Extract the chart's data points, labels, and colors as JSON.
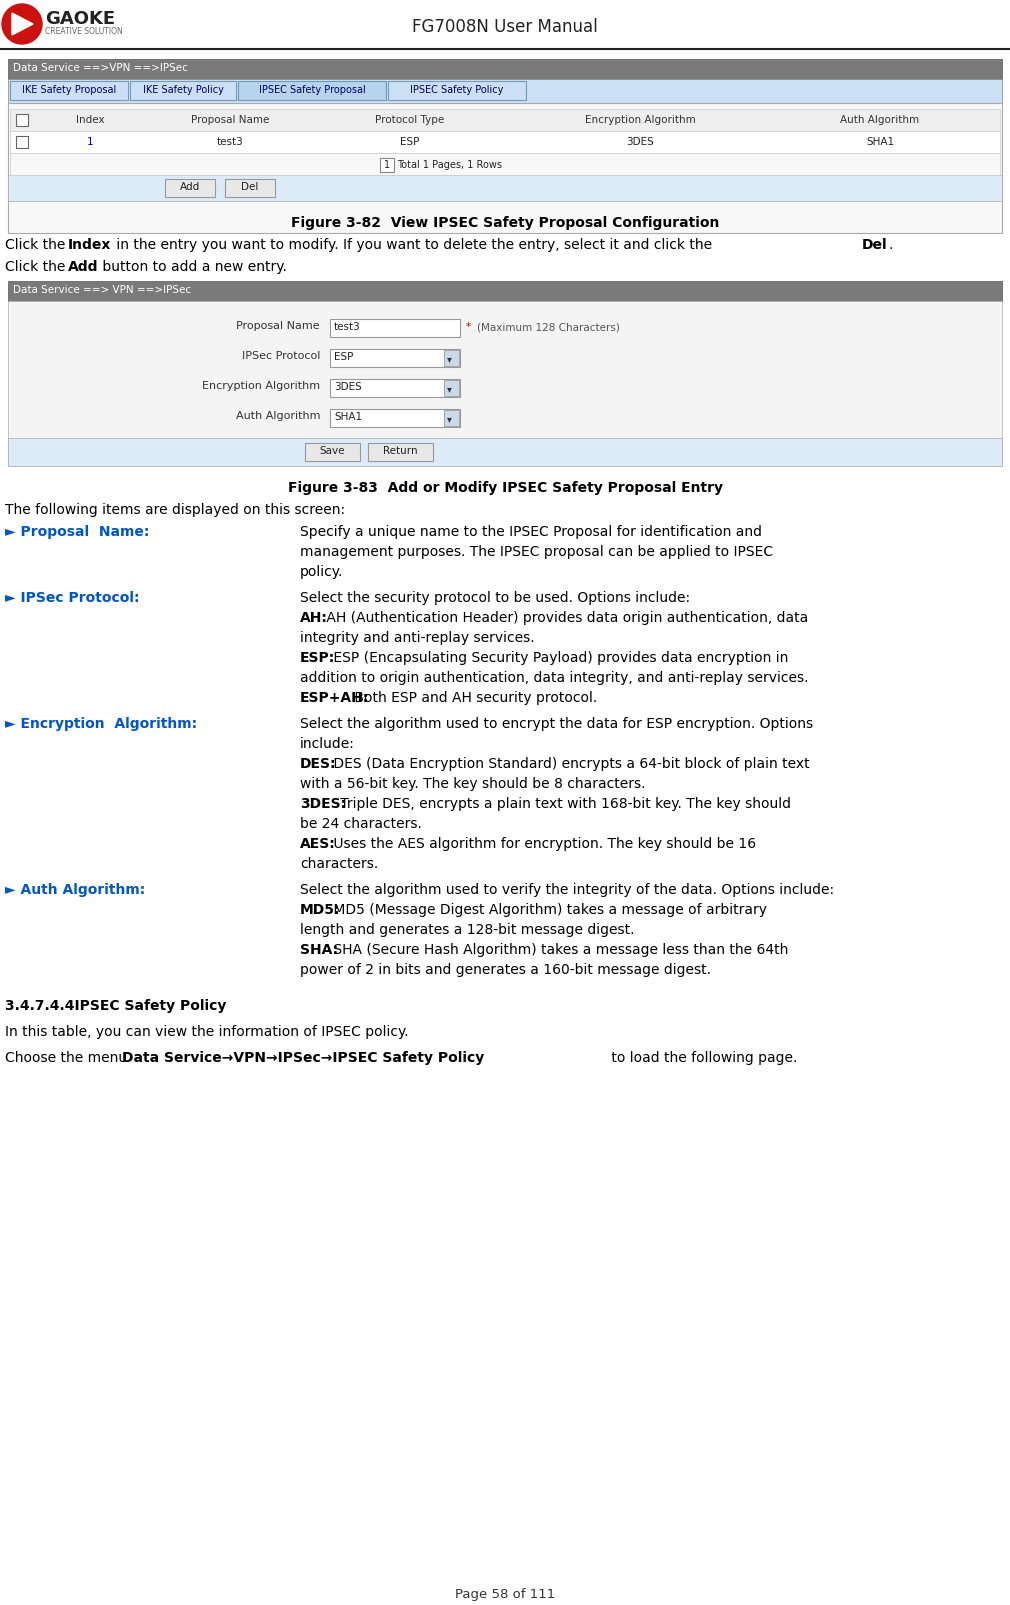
{
  "page_title": "FG7008N User Manual",
  "page_number": "Page 58 of 111",
  "fig1_title": "Figure 3-82  View IPSEC Safety Proposal Configuration",
  "fig2_title": "Figure 3-83  Add or Modify IPSEC Safety Proposal Entry",
  "section_title": "3.4.7.4.4IPSEC Safety Policy",
  "nav_bar1_text": "Data Service ==>VPN ==>IPSec",
  "nav_bar2_text": "Data Service ==> VPN ==>IPSec",
  "tabs": [
    "IKE Safety Proposal",
    "IKE Safety Policy",
    "IPSEC Safety Proposal",
    "IPSEC Safety Policy"
  ],
  "active_tab_index": 2,
  "table_headers": [
    "",
    "Index",
    "Proposal Name",
    "Protocol Type",
    "Encryption Algorithm",
    "Auth Algorithm"
  ],
  "table_row": [
    "",
    "1",
    "test3",
    "ESP",
    "3DES",
    "SHA1"
  ],
  "form_fields": [
    {
      "label": "Proposal Name",
      "value": "test3",
      "extra": "* (Maximum 128 Characters)",
      "dropdown": false
    },
    {
      "label": "IPSec Protocol",
      "value": "ESP",
      "extra": "",
      "dropdown": true
    },
    {
      "label": "Encryption Algorithm",
      "value": "3DES",
      "extra": "",
      "dropdown": true
    },
    {
      "label": "Auth Algorithm",
      "value": "SHA1",
      "extra": "",
      "dropdown": true
    }
  ],
  "bullet_items": [
    {
      "label": "► Proposal  Name:",
      "label_color": "#0055cc",
      "lines": [
        {
          "text": "Specify a unique name to the IPSEC Proposal for identification and",
          "bold_prefix": ""
        },
        {
          "text": "management purposes. The IPSEC proposal can be applied to IPSEC",
          "bold_prefix": ""
        },
        {
          "text": "policy.",
          "bold_prefix": ""
        }
      ]
    },
    {
      "label": "► IPSec Protocol:",
      "label_color": "#0055cc",
      "lines": [
        {
          "text": "Select the security protocol to be used. Options include:",
          "bold_prefix": ""
        },
        {
          "text": " AH (Authentication Header) provides data origin authentication, data",
          "bold_prefix": "AH:"
        },
        {
          "text": "integrity and anti-replay services.",
          "bold_prefix": ""
        },
        {
          "text": " ESP (Encapsulating Security Payload) provides data encryption in",
          "bold_prefix": "ESP:"
        },
        {
          "text": "addition to origin authentication, data integrity, and anti-replay services.",
          "bold_prefix": ""
        },
        {
          "text": " Both ESP and AH security protocol.",
          "bold_prefix": "ESP+AH:"
        }
      ]
    },
    {
      "label": "► Encryption  Algorithm:",
      "label_color": "#0055cc",
      "lines": [
        {
          "text": "Select the algorithm used to encrypt the data for ESP encryption. Options",
          "bold_prefix": ""
        },
        {
          "text": "include:",
          "bold_prefix": ""
        },
        {
          "text": " DES (Data Encryption Standard) encrypts a 64-bit block of plain text",
          "bold_prefix": "DES:"
        },
        {
          "text": "with a 56-bit key. The key should be 8 characters.",
          "bold_prefix": ""
        },
        {
          "text": " Triple DES, encrypts a plain text with 168-bit key. The key should",
          "bold_prefix": "3DES:"
        },
        {
          "text": "be 24 characters.",
          "bold_prefix": ""
        },
        {
          "text": " Uses the AES algorithm for encryption. The key should be 16",
          "bold_prefix": "AES:"
        },
        {
          "text": "characters.",
          "bold_prefix": ""
        }
      ]
    },
    {
      "label": "► Auth Algorithm:",
      "label_color": "#0055cc",
      "lines": [
        {
          "text": "Select the algorithm used to verify the integrity of the data. Options include:",
          "bold_prefix": ""
        },
        {
          "text": " MD5 (Message Digest Algorithm) takes a message of arbitrary",
          "bold_prefix": "MD5:"
        },
        {
          "text": "length and generates a 128-bit message digest.",
          "bold_prefix": ""
        },
        {
          "text": " SHA (Secure Hash Algorithm) takes a message less than the 64th",
          "bold_prefix": "SHA:"
        },
        {
          "text": "power of 2 in bits and generates a 160-bit message digest.",
          "bold_prefix": ""
        }
      ]
    }
  ],
  "section_intro": "In this table, you can view the information of IPSEC policy.",
  "bg_color": "#ffffff",
  "nav_bar_bg": "#7a7a7a",
  "link_color": "#0000cc",
  "tab_blue": "#cce0f5",
  "tab_active": "#b8d4ed"
}
